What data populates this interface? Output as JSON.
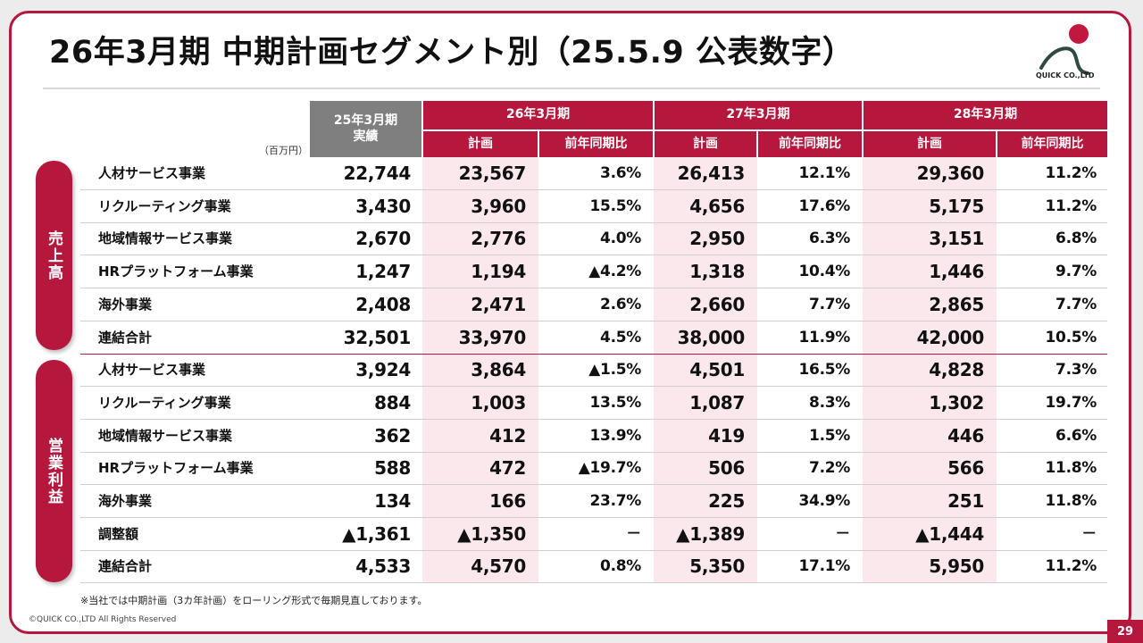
{
  "title": "26年3月期 中期計画セグメント別（25.5.9 公表数字）",
  "logo_text": "QUICK CO.,LTD",
  "unit": "（百万円）",
  "header": {
    "actual_line1": "25年3月期",
    "actual_line2": "実績",
    "periods": [
      {
        "label": "26年3月期"
      },
      {
        "label": "27年3月期"
      },
      {
        "label": "28年3月期"
      }
    ],
    "plan": "計画",
    "yoy": "前年同期比"
  },
  "sections": [
    {
      "label": "売上高",
      "rows": [
        {
          "name": "人材サービス事業",
          "values": [
            "22,744",
            "23,567",
            "3.6%",
            "26,413",
            "12.1%",
            "29,360",
            "11.2%"
          ]
        },
        {
          "name": "リクルーティング事業",
          "values": [
            "3,430",
            "3,960",
            "15.5%",
            "4,656",
            "17.6%",
            "5,175",
            "11.2%"
          ]
        },
        {
          "name": "地域情報サービス事業",
          "values": [
            "2,670",
            "2,776",
            "4.0%",
            "2,950",
            "6.3%",
            "3,151",
            "6.8%"
          ]
        },
        {
          "name": "HRプラットフォーム事業",
          "values": [
            "1,247",
            "1,194",
            "▲4.2%",
            "1,318",
            "10.4%",
            "1,446",
            "9.7%"
          ]
        },
        {
          "name": "海外事業",
          "values": [
            "2,408",
            "2,471",
            "2.6%",
            "2,660",
            "7.7%",
            "2,865",
            "7.7%"
          ]
        },
        {
          "name": "連結合計",
          "values": [
            "32,501",
            "33,970",
            "4.5%",
            "38,000",
            "11.9%",
            "42,000",
            "10.5%"
          ]
        }
      ]
    },
    {
      "label": "営業利益",
      "rows": [
        {
          "name": "人材サービス事業",
          "values": [
            "3,924",
            "3,864",
            "▲1.5%",
            "4,501",
            "16.5%",
            "4,828",
            "7.3%"
          ]
        },
        {
          "name": "リクルーティング事業",
          "values": [
            "884",
            "1,003",
            "13.5%",
            "1,087",
            "8.3%",
            "1,302",
            "19.7%"
          ]
        },
        {
          "name": "地域情報サービス事業",
          "values": [
            "362",
            "412",
            "13.9%",
            "419",
            "1.5%",
            "446",
            "6.6%"
          ]
        },
        {
          "name": "HRプラットフォーム事業",
          "values": [
            "588",
            "472",
            "▲19.7%",
            "506",
            "7.2%",
            "566",
            "11.8%"
          ]
        },
        {
          "name": "海外事業",
          "values": [
            "134",
            "166",
            "23.7%",
            "225",
            "34.9%",
            "251",
            "11.8%"
          ]
        },
        {
          "name": "調整額",
          "values": [
            "▲1,361",
            "▲1,350",
            "－",
            "▲1,389",
            "－",
            "▲1,444",
            "－"
          ]
        },
        {
          "name": "連結合計",
          "values": [
            "4,533",
            "4,570",
            "0.8%",
            "5,350",
            "17.1%",
            "5,950",
            "11.2%"
          ]
        }
      ]
    }
  ],
  "note": "※当社では中期計画（3カ年計画）をローリング形式で毎期見直しております。",
  "copyright": "©QUICK CO.,LTD All Rights Reserved",
  "page_number": "29",
  "colors": {
    "accent": "#b5173d",
    "header_gray": "#7f7f7f",
    "plan_fill": "#fbe8ec"
  }
}
